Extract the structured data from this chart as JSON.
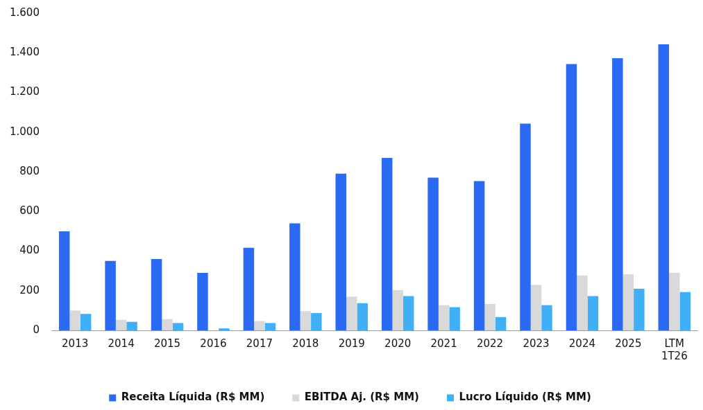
{
  "chart_data": {
    "type": "bar",
    "categories": [
      "2013",
      "2014",
      "2015",
      "2016",
      "2017",
      "2018",
      "2019",
      "2020",
      "2021",
      "2022",
      "2023",
      "2024",
      "2025",
      "LTM 1T26"
    ],
    "series": [
      {
        "name": "Receita Líquida (R$ MM)",
        "color": "#2a6af5",
        "values": [
          500,
          350,
          360,
          290,
          417,
          540,
          790,
          870,
          770,
          753,
          1043,
          1343,
          1373,
          1443
        ]
      },
      {
        "name": "EBITDA Aj. (R$ MM)",
        "color": "#d9d9d9",
        "values": [
          100,
          53,
          57,
          null,
          47,
          97,
          170,
          203,
          127,
          133,
          230,
          277,
          283,
          290
        ]
      },
      {
        "name": "Lucro Líquido (R$ MM)",
        "color": "#3fb0f8",
        "values": [
          83,
          43,
          37,
          10,
          37,
          87,
          137,
          173,
          117,
          67,
          127,
          173,
          210,
          193
        ]
      }
    ],
    "ylim": [
      0,
      1600
    ],
    "yticks": [
      0,
      {
        "value": 200,
        "label": "200"
      },
      {
        "value": 400,
        "label": "400"
      },
      {
        "value": 600,
        "label": "600"
      },
      {
        "value": 800,
        "label": "800"
      },
      {
        "value": 1000,
        "label": "1.000"
      },
      {
        "value": 1200,
        "label": "1.200"
      },
      {
        "value": 1400,
        "label": "1.400"
      },
      {
        "value": 1600,
        "label": "1.600"
      }
    ],
    "grid": false,
    "legend": "bottom"
  }
}
